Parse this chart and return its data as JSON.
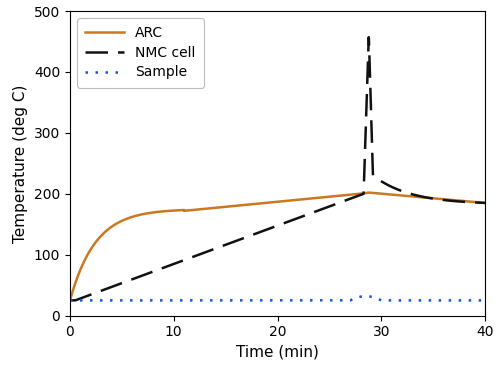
{
  "title": "",
  "xlabel": "Time (min)",
  "ylabel": "Temperature (deg C)",
  "xlim": [
    0,
    40
  ],
  "ylim": [
    0,
    500
  ],
  "xticks": [
    0,
    10,
    20,
    30,
    40
  ],
  "yticks": [
    0,
    100,
    200,
    300,
    400,
    500
  ],
  "arc_color": "#CC7722",
  "nmc_color": "#111111",
  "sample_color": "#1155DD",
  "arc_label": "ARC",
  "nmc_label": "NMC cell",
  "sample_label": "Sample",
  "background_color": "#ffffff",
  "figsize": [
    5.0,
    3.67
  ],
  "dpi": 100
}
